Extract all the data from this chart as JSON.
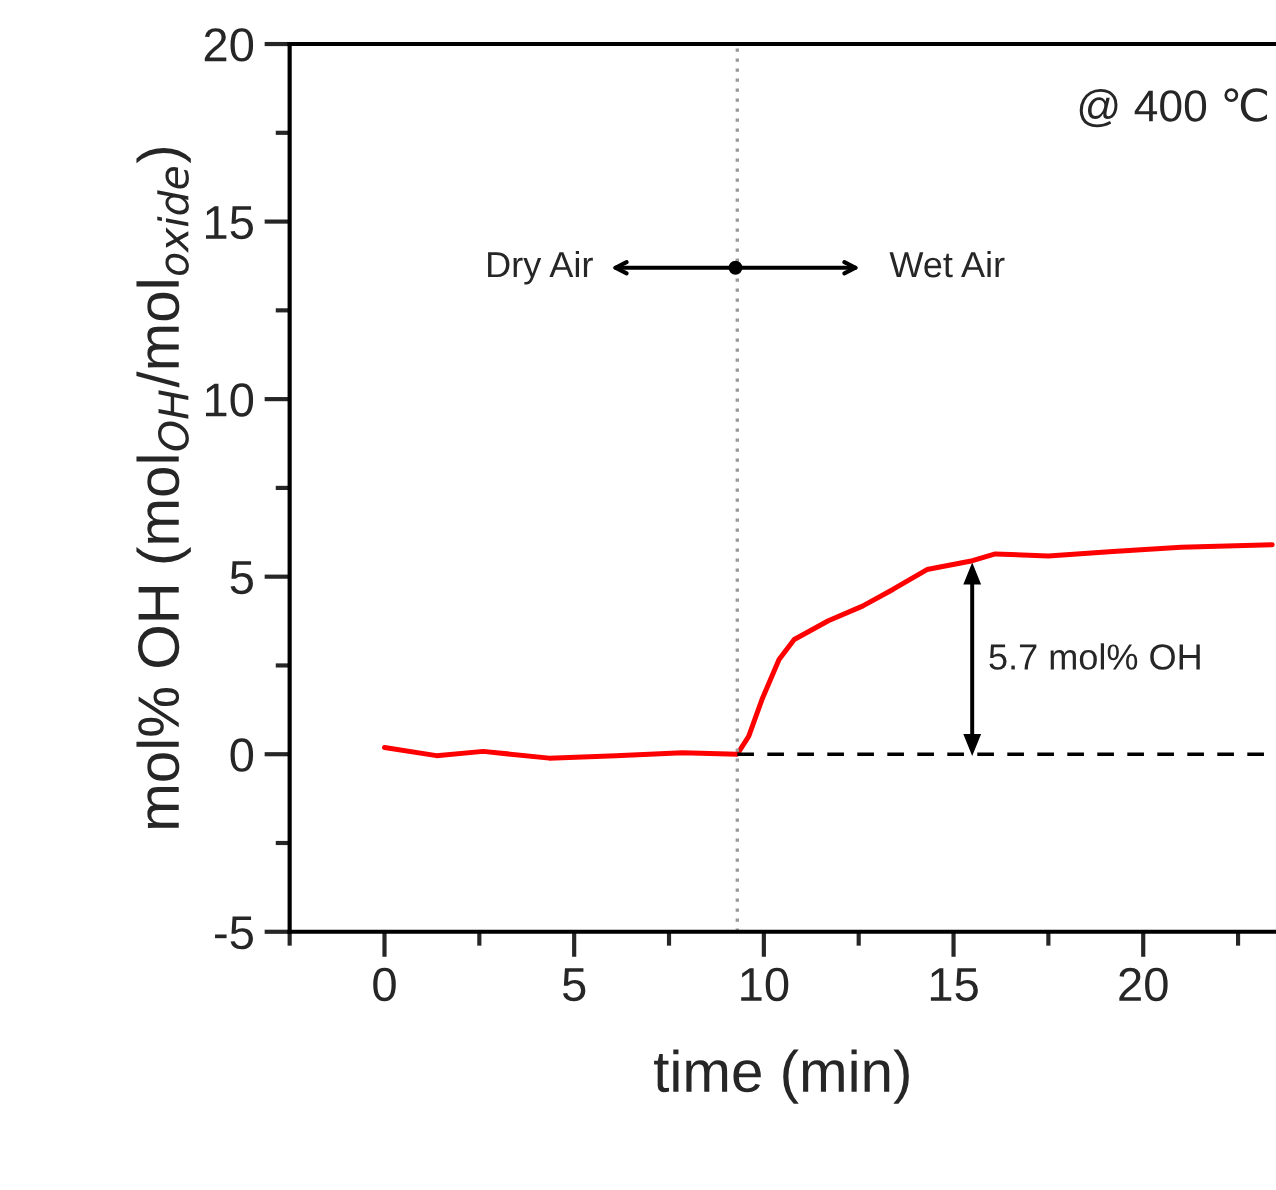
{
  "chart_data": {
    "type": "line",
    "xlabel": "time (min)",
    "ylabel": "mol% OH (mol$_{OH}$/mol$_{oxide}$)",
    "xlim": [
      -2.5,
      23.5
    ],
    "xticks": [
      0,
      5,
      10,
      15,
      20
    ],
    "ylim": [
      -5,
      20
    ],
    "yticks": [
      -5,
      0,
      5,
      10,
      15,
      20
    ],
    "series": [
      {
        "color": "#ff0000",
        "x": [
          0,
          1.37,
          2.6,
          4.34,
          6.1,
          7.85,
          9.3,
          9.6,
          9.95,
          10.4,
          10.8,
          11.7,
          12.6,
          13.4,
          14.3,
          15.5,
          16.1,
          17.5,
          19.2,
          21.0,
          23.4
        ],
        "values": [
          0.19,
          -0.04,
          0.08,
          -0.11,
          -0.04,
          0.04,
          0,
          0.5,
          1.54,
          2.67,
          3.23,
          3.76,
          4.17,
          4.64,
          5.2,
          5.45,
          5.64,
          5.58,
          5.71,
          5.83,
          5.9
        ],
        "line_style": "solid"
      },
      {
        "color": "#000000",
        "x": [
          9.3,
          23.5
        ],
        "values": [
          0,
          0
        ],
        "line_style": "dashed"
      }
    ],
    "ref_lines": [
      {
        "axis": "x",
        "value": 9.3,
        "color": "#999999",
        "line_style": "dotted"
      }
    ],
    "annotations": [
      "@ 400 ℃",
      "Dry Air",
      "Wet Air",
      "5.7 mol% OH"
    ],
    "grid": false,
    "legend": false,
    "marker": "none"
  }
}
